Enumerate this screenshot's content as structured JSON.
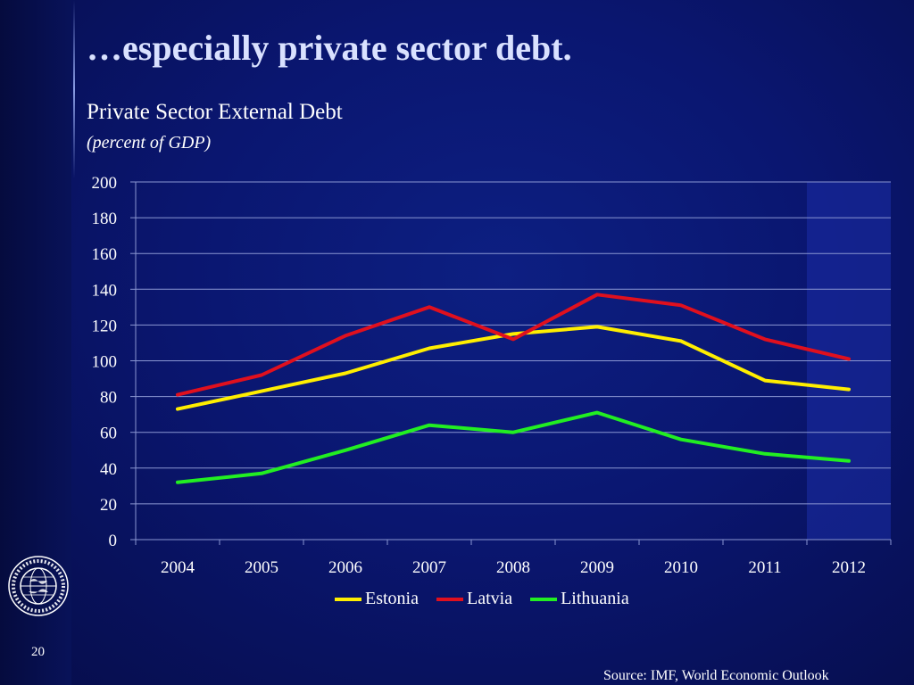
{
  "slide": {
    "title": "…especially private sector debt.",
    "page_number": "20",
    "source": "Source: IMF, World Economic Outlook"
  },
  "logo": {
    "name": "imf-seal",
    "text": "INTERNATIONAL MONETARY FUND"
  },
  "colors": {
    "estonia": "#ffee00",
    "latvia": "#e0101e",
    "lithuania": "#22ee22",
    "forecast_shade": "#1c2da8",
    "grid": "#8a96d2"
  },
  "chart_data": {
    "type": "line",
    "title": "Private Sector External Debt",
    "subtitle": "(percent of  GDP)",
    "categories": [
      "2004",
      "2005",
      "2006",
      "2007",
      "2008",
      "2009",
      "2010",
      "2011",
      "2012"
    ],
    "ylim": [
      0,
      200
    ],
    "yticks": [
      "0",
      "20",
      "40",
      "60",
      "80",
      "100",
      "120",
      "140",
      "160",
      "180",
      "200"
    ],
    "grid": true,
    "legend_position": "bottom",
    "shaded_category": "2012",
    "series": [
      {
        "name": "Estonia",
        "color": "#ffee00",
        "values": [
          73,
          83,
          93,
          107,
          115,
          119,
          111,
          89,
          84
        ]
      },
      {
        "name": "Latvia",
        "color": "#e0101e",
        "values": [
          81,
          92,
          114,
          130,
          112,
          137,
          131,
          112,
          101
        ]
      },
      {
        "name": "Lithuania",
        "color": "#22ee22",
        "values": [
          32,
          37,
          50,
          64,
          60,
          71,
          56,
          48,
          44
        ]
      }
    ]
  }
}
